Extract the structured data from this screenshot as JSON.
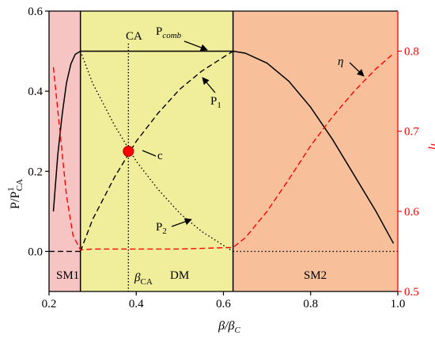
{
  "chart_data": {
    "type": "line",
    "xlabel": {
      "main": "β/β",
      "sub": "C"
    },
    "ylabel_left": {
      "main": "P/P",
      "sup": "1",
      "sub": "CA"
    },
    "ylabel_right": "η",
    "xlim": [
      0.2,
      1.0
    ],
    "ylim_left": [
      -0.1,
      0.6
    ],
    "ylim_right": [
      0.5,
      0.85
    ],
    "x_ticks": [
      0.2,
      0.4,
      0.6,
      0.8,
      1.0
    ],
    "x_tick_labels": [
      "0.2",
      "0.4",
      "0.6",
      "0.8",
      "1.0"
    ],
    "y_ticks_left": [
      0.0,
      0.2,
      0.4,
      0.6
    ],
    "y_tick_labels_left": [
      "0.0",
      "0.2",
      "0.4",
      "0.6"
    ],
    "y_ticks_right": [
      0.5,
      0.6,
      0.7,
      0.8
    ],
    "y_tick_labels_right": [
      "0.5",
      "0.6",
      "0.7",
      "0.8"
    ],
    "boundaries": {
      "b1": 0.272,
      "bca": 0.382,
      "b2": 0.622
    },
    "regions": [
      {
        "label": "SM1",
        "x": [
          0.2,
          0.272
        ],
        "color": "#f7c4c4"
      },
      {
        "label": "DM",
        "x": [
          0.272,
          0.622
        ],
        "color": "#f0ee9a"
      },
      {
        "label": "SM2",
        "x": [
          0.622,
          1.0
        ],
        "color": "#f7c09a"
      }
    ],
    "colors": {
      "left_axis": "#000000",
      "right_axis": "#ff0000",
      "eta": "#ff0000",
      "point": "#ff0000"
    },
    "series": [
      {
        "name": "P_comb",
        "axis": "left",
        "style": "solid",
        "x": [
          0.21,
          0.22,
          0.23,
          0.24,
          0.25,
          0.26,
          0.272,
          0.35,
          0.45,
          0.55,
          0.622,
          0.65,
          0.7,
          0.75,
          0.8,
          0.85,
          0.9,
          0.95,
          0.99
        ],
        "y": [
          0.1,
          0.24,
          0.34,
          0.42,
          0.468,
          0.492,
          0.5,
          0.5,
          0.5,
          0.5,
          0.5,
          0.495,
          0.47,
          0.425,
          0.36,
          0.28,
          0.19,
          0.1,
          0.02
        ]
      },
      {
        "name": "P_1",
        "axis": "left",
        "style": "dashed",
        "x": [
          0.272,
          0.3,
          0.35,
          0.4,
          0.45,
          0.5,
          0.55,
          0.6,
          0.622
        ],
        "y": [
          0.0,
          0.08,
          0.185,
          0.275,
          0.345,
          0.405,
          0.45,
          0.485,
          0.5
        ]
      },
      {
        "name": "P_1_zero",
        "axis": "left",
        "style": "dashed",
        "x": [
          0.2,
          0.272
        ],
        "y": [
          0.0,
          0.0
        ]
      },
      {
        "name": "P_2",
        "axis": "left",
        "style": "dotted",
        "x": [
          0.272,
          0.3,
          0.35,
          0.4,
          0.45,
          0.5,
          0.55,
          0.6,
          0.622
        ],
        "y": [
          0.5,
          0.42,
          0.315,
          0.225,
          0.155,
          0.095,
          0.05,
          0.015,
          0.0
        ]
      },
      {
        "name": "P_2_zero",
        "axis": "left",
        "style": "dotted",
        "x": [
          0.622,
          1.0
        ],
        "y": [
          0.0,
          0.0
        ]
      },
      {
        "name": "η",
        "axis": "right",
        "style": "dashed",
        "x": [
          0.21,
          0.225,
          0.24,
          0.255,
          0.272,
          0.3,
          0.4,
          0.5,
          0.622,
          0.65,
          0.7,
          0.75,
          0.8,
          0.85,
          0.9,
          0.95,
          0.99
        ],
        "y": [
          0.78,
          0.7,
          0.62,
          0.57,
          0.552,
          0.553,
          0.553,
          0.553,
          0.555,
          0.567,
          0.6,
          0.64,
          0.682,
          0.718,
          0.75,
          0.778,
          0.797
        ]
      }
    ],
    "point": {
      "label": "c",
      "x": 0.382,
      "y": 0.25
    },
    "annotations": {
      "ca": "CA",
      "pcomb_main": "P",
      "pcomb_sub": "comb",
      "p1_main": "P",
      "p1_sub": "1",
      "p2_main": "P",
      "p2_sub": "2",
      "eta": "η",
      "bca_main": "β",
      "bca_sub": "CA",
      "sm1": "SM1",
      "dm": "DM",
      "sm2": "SM2"
    }
  }
}
